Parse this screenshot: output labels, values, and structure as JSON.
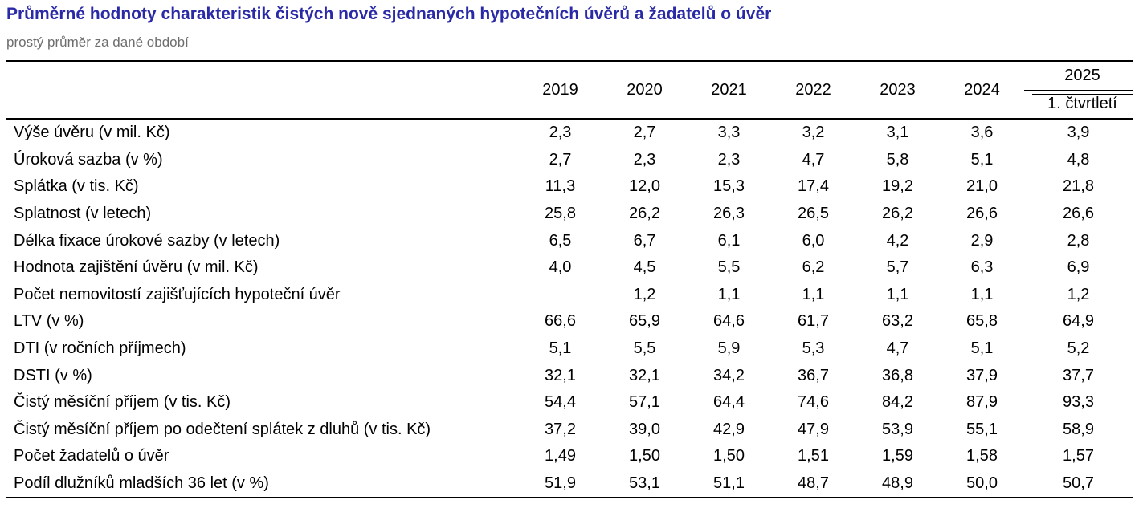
{
  "title": "Průměrné hodnoty charakteristik čistých nově sjednaných hypotečních úvěrů a žadatelů o úvěr",
  "subtitle": "prostý průměr za dané období",
  "table": {
    "years": [
      "2019",
      "2020",
      "2021",
      "2022",
      "2023",
      "2024"
    ],
    "last_year": "2025",
    "last_period": "1. čtvrtletí",
    "rows": [
      {
        "label": "Výše úvěru (v mil. Kč)",
        "values": [
          "2,3",
          "2,7",
          "3,3",
          "3,2",
          "3,1",
          "3,6",
          "3,9"
        ]
      },
      {
        "label": "Úroková sazba (v %)",
        "values": [
          "2,7",
          "2,3",
          "2,3",
          "4,7",
          "5,8",
          "5,1",
          "4,8"
        ]
      },
      {
        "label": "Splátka (v tis. Kč)",
        "values": [
          "11,3",
          "12,0",
          "15,3",
          "17,4",
          "19,2",
          "21,0",
          "21,8"
        ]
      },
      {
        "label": "Splatnost (v letech)",
        "values": [
          "25,8",
          "26,2",
          "26,3",
          "26,5",
          "26,2",
          "26,6",
          "26,6"
        ]
      },
      {
        "label": "Délka fixace úrokové sazby (v letech)",
        "values": [
          "6,5",
          "6,7",
          "6,1",
          "6,0",
          "4,2",
          "2,9",
          "2,8"
        ]
      },
      {
        "label": "Hodnota zajištění úvěru (v mil. Kč)",
        "values": [
          "4,0",
          "4,5",
          "5,5",
          "6,2",
          "5,7",
          "6,3",
          "6,9"
        ]
      },
      {
        "label": "Počet nemovitostí zajišťujících hypoteční úvěr",
        "values": [
          "",
          "1,2",
          "1,1",
          "1,1",
          "1,1",
          "1,1",
          "1,2"
        ]
      },
      {
        "label": "LTV (v %)",
        "values": [
          "66,6",
          "65,9",
          "64,6",
          "61,7",
          "63,2",
          "65,8",
          "64,9"
        ]
      },
      {
        "label": "DTI (v ročních příjmech)",
        "values": [
          "5,1",
          "5,5",
          "5,9",
          "5,3",
          "4,7",
          "5,1",
          "5,2"
        ]
      },
      {
        "label": "DSTI (v %)",
        "values": [
          "32,1",
          "32,1",
          "34,2",
          "36,7",
          "36,8",
          "37,9",
          "37,7"
        ]
      },
      {
        "label": "Čistý měsíční příjem (v tis. Kč)",
        "values": [
          "54,4",
          "57,1",
          "64,4",
          "74,6",
          "84,2",
          "87,9",
          "93,3"
        ]
      },
      {
        "label": "Čistý měsíční příjem po odečtení splátek z dluhů (v tis. Kč)",
        "values": [
          "37,2",
          "39,0",
          "42,9",
          "47,9",
          "53,9",
          "55,1",
          "58,9"
        ]
      },
      {
        "label": "Počet žadatelů o úvěr",
        "values": [
          "1,49",
          "1,50",
          "1,50",
          "1,51",
          "1,59",
          "1,58",
          "1,57"
        ]
      },
      {
        "label": "Podíl dlužníků mladších 36 let (v %)",
        "values": [
          "51,9",
          "53,1",
          "51,1",
          "48,7",
          "48,9",
          "50,0",
          "50,7"
        ]
      }
    ]
  },
  "colors": {
    "title": "#2a2aa6",
    "subtitle": "#6e6e6e",
    "text": "#000000"
  }
}
